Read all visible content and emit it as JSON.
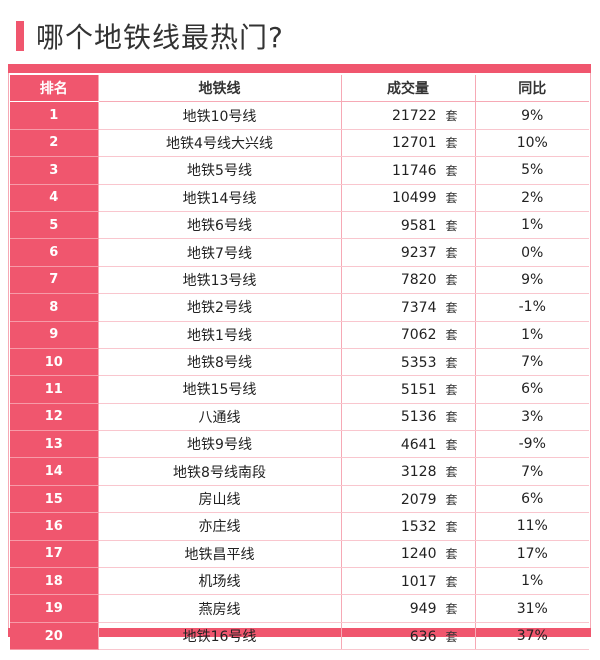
{
  "title": "哪个地铁线最热门?",
  "colors": {
    "accent": "#f0566e",
    "border": "#f6a9b5"
  },
  "table": {
    "headers": {
      "rank": "排名",
      "line": "地铁线",
      "volume": "成交量",
      "yoy": "同比"
    },
    "unit": "套",
    "rows": [
      {
        "rank": "1",
        "line": "地铁10号线",
        "volume": "21722",
        "yoy": "9%"
      },
      {
        "rank": "2",
        "line": "地铁4号线大兴线",
        "volume": "12701",
        "yoy": "10%"
      },
      {
        "rank": "3",
        "line": "地铁5号线",
        "volume": "11746",
        "yoy": "5%"
      },
      {
        "rank": "4",
        "line": "地铁14号线",
        "volume": "10499",
        "yoy": "2%"
      },
      {
        "rank": "5",
        "line": "地铁6号线",
        "volume": "9581",
        "yoy": "1%"
      },
      {
        "rank": "6",
        "line": "地铁7号线",
        "volume": "9237",
        "yoy": "0%"
      },
      {
        "rank": "7",
        "line": "地铁13号线",
        "volume": "7820",
        "yoy": "9%"
      },
      {
        "rank": "8",
        "line": "地铁2号线",
        "volume": "7374",
        "yoy": "-1%"
      },
      {
        "rank": "9",
        "line": "地铁1号线",
        "volume": "7062",
        "yoy": "1%"
      },
      {
        "rank": "10",
        "line": "地铁8号线",
        "volume": "5353",
        "yoy": "7%"
      },
      {
        "rank": "11",
        "line": "地铁15号线",
        "volume": "5151",
        "yoy": "6%"
      },
      {
        "rank": "12",
        "line": "八通线",
        "volume": "5136",
        "yoy": "3%"
      },
      {
        "rank": "13",
        "line": "地铁9号线",
        "volume": "4641",
        "yoy": "-9%"
      },
      {
        "rank": "14",
        "line": "地铁8号线南段",
        "volume": "3128",
        "yoy": "7%"
      },
      {
        "rank": "15",
        "line": "房山线",
        "volume": "2079",
        "yoy": "6%"
      },
      {
        "rank": "16",
        "line": "亦庄线",
        "volume": "1532",
        "yoy": "11%"
      },
      {
        "rank": "17",
        "line": "地铁昌平线",
        "volume": "1240",
        "yoy": "17%"
      },
      {
        "rank": "18",
        "line": "机场线",
        "volume": "1017",
        "yoy": "1%"
      },
      {
        "rank": "19",
        "line": "燕房线",
        "volume": "949",
        "yoy": "31%"
      },
      {
        "rank": "20",
        "line": "地铁16号线",
        "volume": "636",
        "yoy": "37%"
      }
    ]
  }
}
